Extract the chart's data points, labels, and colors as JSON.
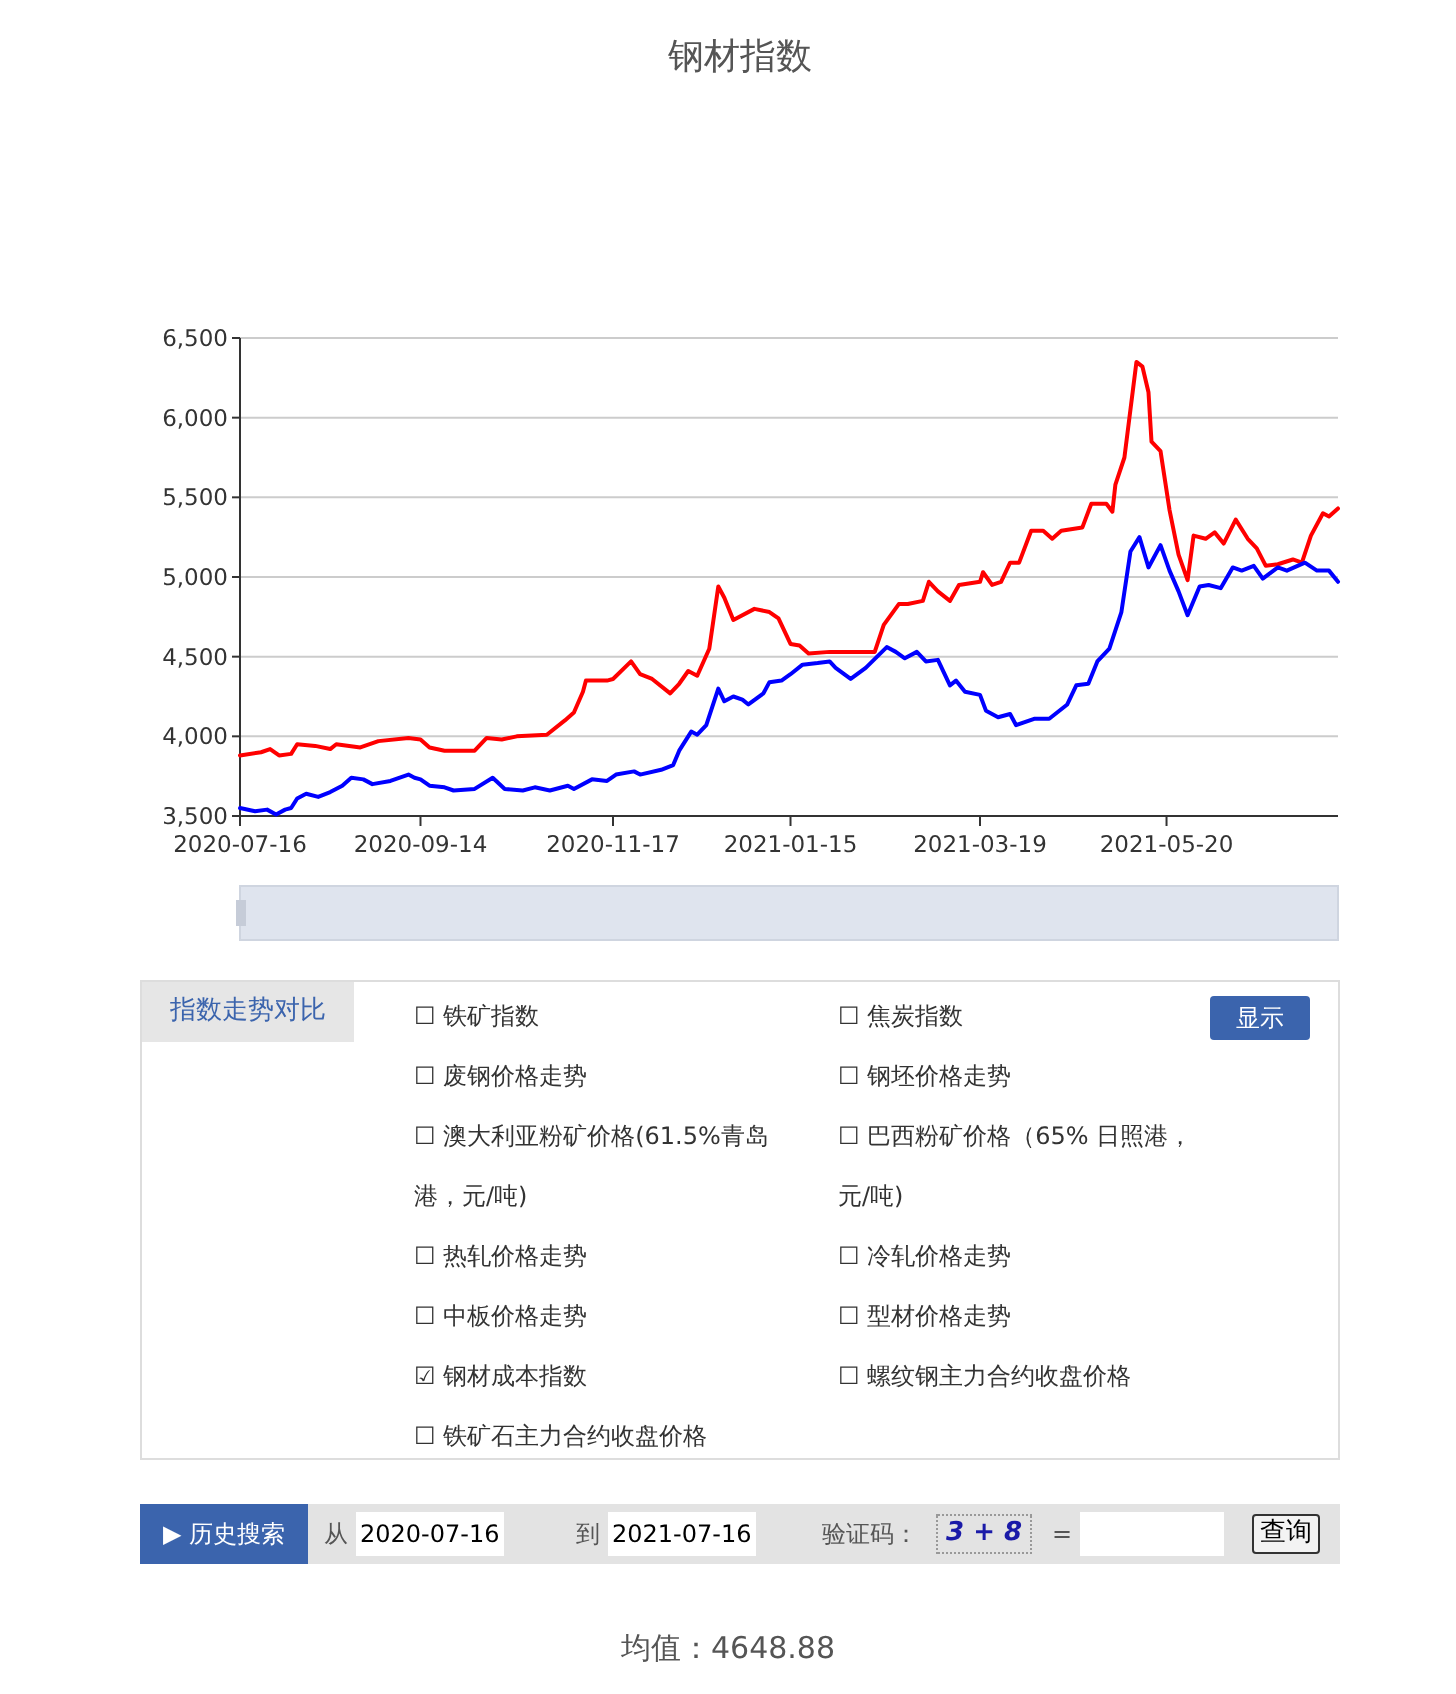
{
  "chart_data": [
    {
      "type": "line",
      "title": "钢材指数",
      "grid": "y",
      "xlim": [
        "2020-07-16",
        "2021-07-16"
      ],
      "xticks": [
        "2020-07-16",
        "2020-09-14",
        "2020-11-17",
        "2021-01-15",
        "2021-03-19",
        "2021-05-20"
      ],
      "ylim": [
        3500,
        6500
      ],
      "yticks": [
        {
          "value": 3500,
          "label": "3,500"
        },
        {
          "value": 4000,
          "label": "4,000"
        },
        {
          "value": 4500,
          "label": "4,500"
        },
        {
          "value": 5000,
          "label": "5,000"
        },
        {
          "value": 5500,
          "label": "5,500"
        },
        {
          "value": 6000,
          "label": "6,000"
        },
        {
          "value": 6500,
          "label": "6,500"
        }
      ],
      "annotations": [
        "均值：4648.88"
      ],
      "series": [
        {
          "color": "#ff0000",
          "x": [
            "2020-07-16",
            "2020-07-23",
            "2020-07-26",
            "2020-07-29",
            "2020-08-02",
            "2020-08-04",
            "2020-08-10",
            "2020-08-15",
            "2020-08-17",
            "2020-08-25",
            "2020-08-31",
            "2020-09-10",
            "2020-09-14",
            "2020-09-17",
            "2020-09-22",
            "2020-10-02",
            "2020-10-06",
            "2020-10-11",
            "2020-10-16",
            "2020-10-26",
            "2020-11-01",
            "2020-11-04",
            "2020-11-07",
            "2020-11-08",
            "2020-11-15",
            "2020-11-17",
            "2020-11-23",
            "2020-11-26",
            "2020-11-30",
            "2020-12-06",
            "2020-12-09",
            "2020-12-12",
            "2020-12-15",
            "2020-12-19",
            "2020-12-22",
            "2020-12-24",
            "2020-12-27",
            "2021-01-03",
            "2021-01-08",
            "2021-01-11",
            "2021-01-15",
            "2021-01-18",
            "2021-01-21",
            "2021-01-28",
            "2021-02-12",
            "2021-02-15",
            "2021-02-20",
            "2021-02-23",
            "2021-02-28",
            "2021-03-02",
            "2021-03-05",
            "2021-03-09",
            "2021-03-12",
            "2021-03-19",
            "2021-03-20",
            "2021-03-23",
            "2021-03-26",
            "2021-03-29",
            "2021-04-01",
            "2021-04-05",
            "2021-04-09",
            "2021-04-12",
            "2021-04-15",
            "2021-04-22",
            "2021-04-25",
            "2021-04-30",
            "2021-05-02",
            "2021-05-03",
            "2021-05-06",
            "2021-05-10",
            "2021-05-12",
            "2021-05-14",
            "2021-05-15",
            "2021-05-18",
            "2021-05-21",
            "2021-05-24",
            "2021-05-27",
            "2021-05-29",
            "2021-06-02",
            "2021-06-05",
            "2021-06-08",
            "2021-06-12",
            "2021-06-16",
            "2021-06-19",
            "2021-06-22",
            "2021-06-26",
            "2021-07-01",
            "2021-07-04",
            "2021-07-07",
            "2021-07-11",
            "2021-07-13",
            "2021-07-16"
          ],
          "values": [
            3880,
            3900,
            3920,
            3880,
            3890,
            3950,
            3940,
            3920,
            3950,
            3930,
            3970,
            3990,
            3980,
            3930,
            3910,
            3910,
            3990,
            3980,
            4000,
            4010,
            4100,
            4150,
            4280,
            4350,
            4350,
            4360,
            4470,
            4390,
            4360,
            4270,
            4330,
            4410,
            4380,
            4550,
            4940,
            4870,
            4730,
            4800,
            4780,
            4740,
            4580,
            4570,
            4520,
            4530,
            4530,
            4700,
            4830,
            4830,
            4850,
            4970,
            4910,
            4850,
            4950,
            4970,
            5030,
            4950,
            4970,
            5090,
            5090,
            5290,
            5290,
            5240,
            5290,
            5310,
            5460,
            5460,
            5410,
            5580,
            5750,
            6350,
            6320,
            6160,
            5850,
            5790,
            5420,
            5140,
            4980,
            5260,
            5240,
            5280,
            5210,
            5360,
            5240,
            5180,
            5070,
            5080,
            5110,
            5090,
            5260,
            5400,
            5380,
            5430
          ]
        },
        {
          "color": "#0000ff",
          "x": [
            "2020-07-16",
            "2020-07-21",
            "2020-07-25",
            "2020-07-28",
            "2020-07-31",
            "2020-08-02",
            "2020-08-04",
            "2020-08-07",
            "2020-08-11",
            "2020-08-15",
            "2020-08-19",
            "2020-08-22",
            "2020-08-26",
            "2020-08-29",
            "2020-09-04",
            "2020-09-10",
            "2020-09-12",
            "2020-09-14",
            "2020-09-17",
            "2020-09-22",
            "2020-09-25",
            "2020-10-02",
            "2020-10-08",
            "2020-10-12",
            "2020-10-18",
            "2020-10-22",
            "2020-10-27",
            "2020-11-02",
            "2020-11-04",
            "2020-11-10",
            "2020-11-15",
            "2020-11-18",
            "2020-11-24",
            "2020-11-26",
            "2020-12-03",
            "2020-12-07",
            "2020-12-09",
            "2020-12-13",
            "2020-12-15",
            "2020-12-18",
            "2020-12-22",
            "2020-12-24",
            "2020-12-27",
            "2020-12-30",
            "2021-01-01",
            "2021-01-06",
            "2021-01-08",
            "2021-01-12",
            "2021-01-15",
            "2021-01-19",
            "2021-01-24",
            "2021-01-28",
            "2021-01-30",
            "2021-02-04",
            "2021-02-09",
            "2021-02-16",
            "2021-02-19",
            "2021-02-22",
            "2021-02-26",
            "2021-03-01",
            "2021-03-05",
            "2021-03-09",
            "2021-03-11",
            "2021-03-14",
            "2021-03-19",
            "2021-03-21",
            "2021-03-25",
            "2021-03-29",
            "2021-03-31",
            "2021-04-06",
            "2021-04-11",
            "2021-04-17",
            "2021-04-20",
            "2021-04-24",
            "2021-04-27",
            "2021-05-01",
            "2021-05-05",
            "2021-05-08",
            "2021-05-11",
            "2021-05-14",
            "2021-05-18",
            "2021-05-21",
            "2021-05-24",
            "2021-05-27",
            "2021-05-31",
            "2021-06-03",
            "2021-06-07",
            "2021-06-11",
            "2021-06-14",
            "2021-06-18",
            "2021-06-21",
            "2021-06-26",
            "2021-06-29",
            "2021-07-05",
            "2021-07-09",
            "2021-07-13",
            "2021-07-16"
          ],
          "values": [
            3550,
            3530,
            3540,
            3510,
            3540,
            3550,
            3610,
            3640,
            3620,
            3650,
            3690,
            3740,
            3730,
            3700,
            3720,
            3760,
            3740,
            3730,
            3690,
            3680,
            3660,
            3670,
            3740,
            3670,
            3660,
            3680,
            3660,
            3690,
            3670,
            3730,
            3720,
            3760,
            3780,
            3760,
            3790,
            3820,
            3910,
            4030,
            4010,
            4070,
            4300,
            4220,
            4250,
            4230,
            4200,
            4270,
            4340,
            4350,
            4390,
            4450,
            4460,
            4470,
            4430,
            4360,
            4430,
            4560,
            4530,
            4490,
            4530,
            4470,
            4480,
            4320,
            4350,
            4280,
            4260,
            4160,
            4120,
            4140,
            4070,
            4110,
            4110,
            4200,
            4320,
            4330,
            4470,
            4550,
            4780,
            5160,
            5250,
            5060,
            5200,
            5040,
            4910,
            4760,
            4940,
            4950,
            4930,
            5060,
            5040,
            5070,
            4990,
            5060,
            5040,
            5090,
            5040,
            5040,
            4970
          ]
        }
      ]
    },
    {
      "type": "other",
      "annotations": [
        "指数走势对比",
        "☐ 铁矿指数",
        "☐ 焦炭指数",
        "显示",
        "☐ 废钢价格走势",
        "☐ 钢坯价格走势",
        "☐ 澳大利亚粉矿价格(61.5%青岛港，元/吨)",
        "☐ 巴西粉矿价格（65% 日照港，元/吨)",
        "☐ 热轧价格走势",
        "☐ 冷轧价格走势",
        "☐ 中板价格走势",
        "☐ 型材价格走势",
        "☑ 钢材成本指数",
        "☐ 螺纹钢主力合约收盘价格",
        "☐ 铁矿石主力合约收盘价格",
        "▶ 历史搜索",
        "从",
        "2020-07-16",
        "到",
        "2021-07-16",
        "验证码：",
        "3 + 8",
        "=",
        "查询"
      ]
    }
  ]
}
